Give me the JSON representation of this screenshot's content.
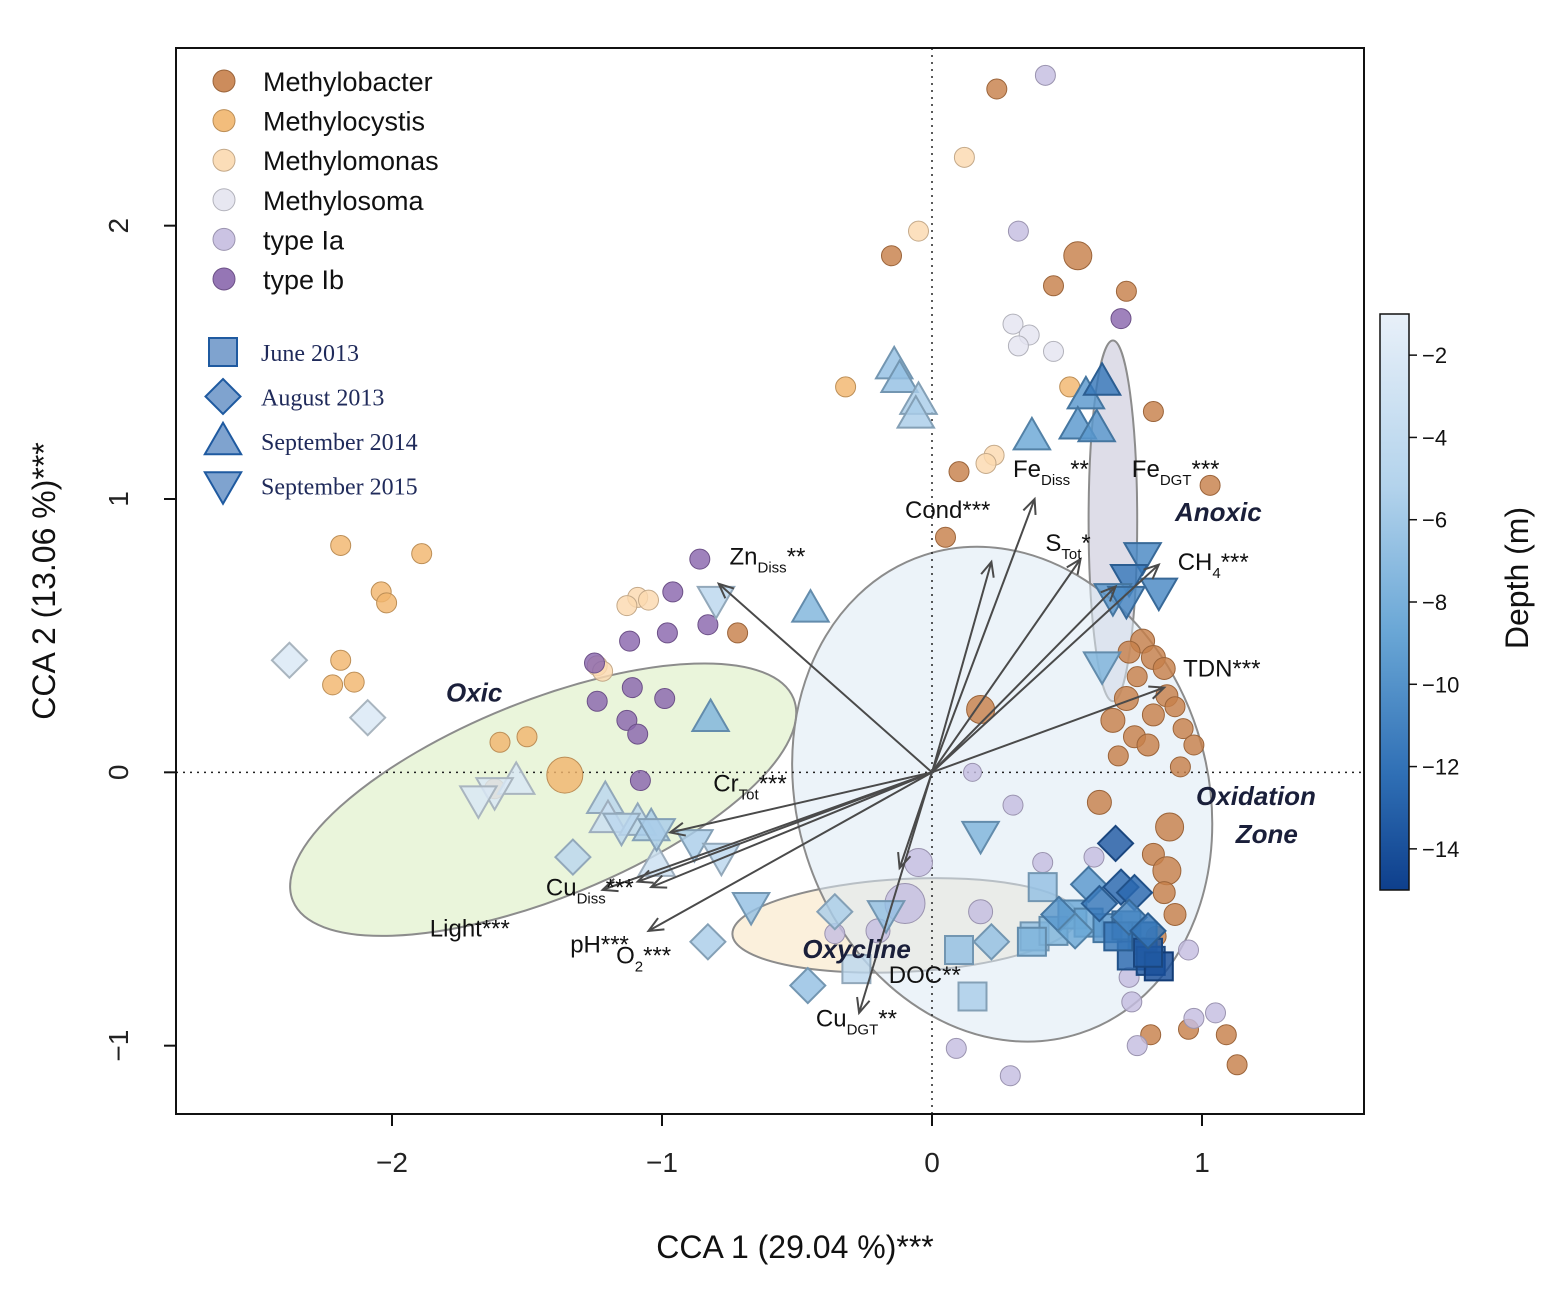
{
  "chart_data": {
    "type": "scatter",
    "subtype": "CCA biplot",
    "xlabel": "CCA 1  (29.04 %)***",
    "ylabel": "CCA 2  (13.06 %)***",
    "xlim": [
      -2.8,
      1.6
    ],
    "ylim": [
      -1.25,
      2.65
    ],
    "xticks": [
      -2,
      -1,
      0,
      1
    ],
    "yticks": [
      -1,
      0,
      1,
      2
    ],
    "xtick_labels": [
      "−2",
      "−1",
      "0",
      "1"
    ],
    "ytick_labels": [
      "−1",
      "0",
      "1",
      "2"
    ],
    "genera": [
      {
        "name": "Methylobacter",
        "color": "#c7804a"
      },
      {
        "name": "Methylocystis",
        "color": "#f1b66e"
      },
      {
        "name": "Methylomonas",
        "color": "#fbd9b0"
      },
      {
        "name": "Methylosoma",
        "color": "#e4e4f0"
      },
      {
        "name": "type Ia",
        "color": "#c5bde0"
      },
      {
        "name": "type Ib",
        "color": "#8a67ad"
      }
    ],
    "campaigns": [
      {
        "name": "June 2013",
        "shape": "square"
      },
      {
        "name": "August 2013",
        "shape": "diamond"
      },
      {
        "name": "September 2014",
        "shape": "triangle-up"
      },
      {
        "name": "September 2015",
        "shape": "triangle-down"
      }
    ],
    "colorbar": {
      "title": "Depth (m)",
      "range": [
        -15,
        -1
      ],
      "ticks": [
        -2,
        -4,
        -6,
        -8,
        -10,
        -12,
        -14
      ],
      "tick_labels": [
        "−2",
        "−4",
        "−6",
        "−8",
        "−10",
        "−12",
        "−14"
      ],
      "colors": [
        "#0e3f8c",
        "#2f6fb5",
        "#6aa7d6",
        "#b3d3ec",
        "#e6eef8"
      ]
    },
    "zones": [
      {
        "name": "Oxic",
        "color": "#d8ecbd",
        "cx": -1.44,
        "cy": -0.1,
        "rx": 1.0,
        "ry": 0.36,
        "rot": -22,
        "lx": -1.8,
        "ly": 0.26
      },
      {
        "name": "Oxycline",
        "color": "#f7e3bf",
        "cx": -0.1,
        "cy": -0.56,
        "rx": 0.64,
        "ry": 0.17,
        "rot": -3,
        "lx": -0.48,
        "ly": -0.68
      },
      {
        "name": "Anoxic",
        "color": "#c3c1d6",
        "cx": 0.67,
        "cy": 0.92,
        "rx": 0.09,
        "ry": 0.66,
        "rot": 0,
        "lx": 0.9,
        "ly": 0.92
      },
      {
        "name": "Oxidation Zone",
        "color": "#dceaf4",
        "cx": 0.26,
        "cy": -0.08,
        "rx": 0.76,
        "ry": 0.92,
        "rot": -18,
        "lx": 1.2,
        "ly": -0.12
      }
    ],
    "vectors": [
      {
        "label": "Fe",
        "sub": "Diss",
        "sig": "**",
        "x": 0.38,
        "y": 1.0,
        "lx": 0.3,
        "ly": 1.08
      },
      {
        "label": "Fe",
        "sub": "DGT",
        "sig": "***",
        "x": 0.84,
        "y": 0.76,
        "lx": 0.74,
        "ly": 1.08
      },
      {
        "label": "Cond",
        "sub": "",
        "sig": "***",
        "x": 0.22,
        "y": 0.77,
        "lx": -0.1,
        "ly": 0.93
      },
      {
        "label": "S",
        "sub": "Tot",
        "sig": "*",
        "x": 0.55,
        "y": 0.78,
        "lx": 0.42,
        "ly": 0.81
      },
      {
        "label": "CH",
        "sub": "4",
        "sig": "***",
        "x": 0.68,
        "y": 0.68,
        "lx": 0.91,
        "ly": 0.74
      },
      {
        "label": "TDN",
        "sub": "",
        "sig": "***",
        "x": 0.86,
        "y": 0.31,
        "lx": 0.93,
        "ly": 0.35
      },
      {
        "label": "Zn",
        "sub": "Diss",
        "sig": "**",
        "x": -0.79,
        "y": 0.69,
        "lx": -0.75,
        "ly": 0.76
      },
      {
        "label": "Cr",
        "sub": "Tot",
        "sig": "***",
        "x": -0.97,
        "y": -0.22,
        "lx": -0.81,
        "ly": -0.07
      },
      {
        "label": "Cu",
        "sub": "Diss",
        "sig": "***",
        "x": -1.22,
        "y": -0.43,
        "lx": -1.43,
        "ly": -0.45
      },
      {
        "label": "Light",
        "sub": "",
        "sig": "***",
        "x": -1.09,
        "y": -0.4,
        "lx": -1.86,
        "ly": -0.6
      },
      {
        "label": "pH",
        "sub": "",
        "sig": "***",
        "x": -1.04,
        "y": -0.42,
        "lx": -1.34,
        "ly": -0.66
      },
      {
        "label": "O",
        "sub": "2",
        "sig": "***",
        "x": -1.05,
        "y": -0.58,
        "lx": -1.17,
        "ly": -0.7
      },
      {
        "label": "DOC",
        "sub": "",
        "sig": "**",
        "x": -0.12,
        "y": -0.35,
        "lx": -0.16,
        "ly": -0.77
      },
      {
        "label": "Cu",
        "sub": "DGT",
        "sig": "**",
        "x": -0.27,
        "y": -0.88,
        "lx": -0.43,
        "ly": -0.93
      }
    ],
    "genus_points": [
      {
        "g": 0,
        "x": 0.24,
        "y": 2.5,
        "s": 10
      },
      {
        "g": 0,
        "x": -0.15,
        "y": 1.89,
        "s": 10
      },
      {
        "g": 0,
        "x": 0.54,
        "y": 1.89,
        "s": 14
      },
      {
        "g": 0,
        "x": 0.45,
        "y": 1.78,
        "s": 10
      },
      {
        "g": 0,
        "x": 0.72,
        "y": 1.76,
        "s": 10
      },
      {
        "g": 0,
        "x": 0.82,
        "y": 1.32,
        "s": 10
      },
      {
        "g": 0,
        "x": 0.1,
        "y": 1.1,
        "s": 10
      },
      {
        "g": 0,
        "x": 1.03,
        "y": 1.05,
        "s": 10
      },
      {
        "g": 0,
        "x": 0.05,
        "y": 0.86,
        "s": 10
      },
      {
        "g": 0,
        "x": -0.72,
        "y": 0.51,
        "s": 10
      },
      {
        "g": 0,
        "x": 0.18,
        "y": 0.23,
        "s": 14
      },
      {
        "g": 0,
        "x": 0.78,
        "y": 0.48,
        "s": 12
      },
      {
        "g": 0,
        "x": 0.82,
        "y": 0.42,
        "s": 12
      },
      {
        "g": 0,
        "x": 0.86,
        "y": 0.38,
        "s": 11
      },
      {
        "g": 0,
        "x": 0.73,
        "y": 0.44,
        "s": 11
      },
      {
        "g": 0,
        "x": 0.76,
        "y": 0.35,
        "s": 10
      },
      {
        "g": 0,
        "x": 0.87,
        "y": 0.28,
        "s": 11
      },
      {
        "g": 0,
        "x": 0.72,
        "y": 0.27,
        "s": 12
      },
      {
        "g": 0,
        "x": 0.82,
        "y": 0.21,
        "s": 11
      },
      {
        "g": 0,
        "x": 0.9,
        "y": 0.24,
        "s": 10
      },
      {
        "g": 0,
        "x": 0.67,
        "y": 0.19,
        "s": 12
      },
      {
        "g": 0,
        "x": 0.75,
        "y": 0.13,
        "s": 11
      },
      {
        "g": 0,
        "x": 0.8,
        "y": 0.1,
        "s": 11
      },
      {
        "g": 0,
        "x": 0.93,
        "y": 0.16,
        "s": 10
      },
      {
        "g": 0,
        "x": 0.97,
        "y": 0.1,
        "s": 10
      },
      {
        "g": 0,
        "x": 0.69,
        "y": 0.06,
        "s": 10
      },
      {
        "g": 0,
        "x": 0.92,
        "y": 0.02,
        "s": 10
      },
      {
        "g": 0,
        "x": 0.62,
        "y": -0.11,
        "s": 12
      },
      {
        "g": 0,
        "x": 0.88,
        "y": -0.2,
        "s": 14
      },
      {
        "g": 0,
        "x": 0.82,
        "y": -0.3,
        "s": 11
      },
      {
        "g": 0,
        "x": 0.87,
        "y": -0.36,
        "s": 14
      },
      {
        "g": 0,
        "x": 0.86,
        "y": -0.44,
        "s": 11
      },
      {
        "g": 0,
        "x": 0.9,
        "y": -0.52,
        "s": 11
      },
      {
        "g": 0,
        "x": 0.83,
        "y": -0.6,
        "s": 10
      },
      {
        "g": 0,
        "x": 0.78,
        "y": -0.64,
        "s": 10
      },
      {
        "g": 0,
        "x": 0.81,
        "y": -0.96,
        "s": 10
      },
      {
        "g": 0,
        "x": 0.95,
        "y": -0.94,
        "s": 10
      },
      {
        "g": 0,
        "x": 1.09,
        "y": -0.96,
        "s": 10
      },
      {
        "g": 0,
        "x": 1.13,
        "y": -1.07,
        "s": 10
      },
      {
        "g": 1,
        "x": -2.19,
        "y": 0.83,
        "s": 10
      },
      {
        "g": 1,
        "x": -1.89,
        "y": 0.8,
        "s": 10
      },
      {
        "g": 1,
        "x": -2.04,
        "y": 0.66,
        "s": 10
      },
      {
        "g": 1,
        "x": -2.02,
        "y": 0.62,
        "s": 10
      },
      {
        "g": 1,
        "x": -2.19,
        "y": 0.41,
        "s": 10
      },
      {
        "g": 1,
        "x": -2.22,
        "y": 0.32,
        "s": 10
      },
      {
        "g": 1,
        "x": -2.14,
        "y": 0.33,
        "s": 10
      },
      {
        "g": 1,
        "x": -1.6,
        "y": 0.11,
        "s": 10
      },
      {
        "g": 1,
        "x": -1.5,
        "y": 0.13,
        "s": 10
      },
      {
        "g": 1,
        "x": -1.36,
        "y": -0.01,
        "s": 18
      },
      {
        "g": 1,
        "x": -1.62,
        "y": -0.06,
        "s": 10
      },
      {
        "g": 1,
        "x": -0.32,
        "y": 1.41,
        "s": 10
      },
      {
        "g": 1,
        "x": 0.51,
        "y": 1.41,
        "s": 10
      },
      {
        "g": 2,
        "x": 0.12,
        "y": 2.25,
        "s": 10
      },
      {
        "g": 2,
        "x": -0.05,
        "y": 1.98,
        "s": 10
      },
      {
        "g": 2,
        "x": -1.09,
        "y": 0.64,
        "s": 10
      },
      {
        "g": 2,
        "x": -1.05,
        "y": 0.63,
        "s": 10
      },
      {
        "g": 2,
        "x": -1.13,
        "y": 0.61,
        "s": 10
      },
      {
        "g": 2,
        "x": -1.24,
        "y": 0.39,
        "s": 10
      },
      {
        "g": 2,
        "x": -1.22,
        "y": 0.37,
        "s": 10
      },
      {
        "g": 2,
        "x": 0.23,
        "y": 1.16,
        "s": 10
      },
      {
        "g": 2,
        "x": 0.2,
        "y": 1.13,
        "s": 10
      },
      {
        "g": 3,
        "x": 0.3,
        "y": 1.64,
        "s": 10
      },
      {
        "g": 3,
        "x": 0.36,
        "y": 1.6,
        "s": 10
      },
      {
        "g": 3,
        "x": 0.32,
        "y": 1.56,
        "s": 10
      },
      {
        "g": 3,
        "x": 0.45,
        "y": 1.54,
        "s": 10
      },
      {
        "g": 4,
        "x": 0.42,
        "y": 2.55,
        "s": 10
      },
      {
        "g": 4,
        "x": 0.32,
        "y": 1.98,
        "s": 10
      },
      {
        "g": 4,
        "x": 0.15,
        "y": 0.0,
        "s": 9
      },
      {
        "g": 4,
        "x": 0.3,
        "y": -0.12,
        "s": 10
      },
      {
        "g": 4,
        "x": -0.1,
        "y": -0.48,
        "s": 20
      },
      {
        "g": 4,
        "x": -0.05,
        "y": -0.33,
        "s": 14
      },
      {
        "g": 4,
        "x": -0.2,
        "y": -0.58,
        "s": 12
      },
      {
        "g": 4,
        "x": 0.18,
        "y": -0.51,
        "s": 12
      },
      {
        "g": 4,
        "x": -0.36,
        "y": -0.59,
        "s": 10
      },
      {
        "g": 4,
        "x": 0.41,
        "y": -0.33,
        "s": 10
      },
      {
        "g": 4,
        "x": 0.6,
        "y": -0.31,
        "s": 10
      },
      {
        "g": 4,
        "x": 0.95,
        "y": -0.65,
        "s": 10
      },
      {
        "g": 4,
        "x": 0.97,
        "y": -0.9,
        "s": 10
      },
      {
        "g": 4,
        "x": 0.74,
        "y": -0.84,
        "s": 10
      },
      {
        "g": 4,
        "x": 0.76,
        "y": -1.0,
        "s": 10
      },
      {
        "g": 4,
        "x": 0.09,
        "y": -1.01,
        "s": 10
      },
      {
        "g": 4,
        "x": 0.29,
        "y": -1.11,
        "s": 10
      },
      {
        "g": 4,
        "x": 1.05,
        "y": -0.88,
        "s": 10
      },
      {
        "g": 4,
        "x": 0.73,
        "y": -0.75,
        "s": 10
      },
      {
        "g": 5,
        "x": 0.7,
        "y": 1.66,
        "s": 10
      },
      {
        "g": 5,
        "x": -0.86,
        "y": 0.78,
        "s": 10
      },
      {
        "g": 5,
        "x": -0.96,
        "y": 0.66,
        "s": 10
      },
      {
        "g": 5,
        "x": -0.98,
        "y": 0.51,
        "s": 10
      },
      {
        "g": 5,
        "x": -0.83,
        "y": 0.54,
        "s": 10
      },
      {
        "g": 5,
        "x": -1.12,
        "y": 0.48,
        "s": 10
      },
      {
        "g": 5,
        "x": -1.25,
        "y": 0.4,
        "s": 10
      },
      {
        "g": 5,
        "x": -1.11,
        "y": 0.31,
        "s": 10
      },
      {
        "g": 5,
        "x": -1.24,
        "y": 0.26,
        "s": 10
      },
      {
        "g": 5,
        "x": -0.99,
        "y": 0.27,
        "s": 10
      },
      {
        "g": 5,
        "x": -1.13,
        "y": 0.19,
        "s": 10
      },
      {
        "g": 5,
        "x": -1.09,
        "y": 0.14,
        "s": 10
      },
      {
        "g": 5,
        "x": -1.08,
        "y": -0.03,
        "s": 10
      }
    ],
    "sample_points": [
      {
        "c": 2,
        "x": -0.14,
        "y": 1.49,
        "d": -6
      },
      {
        "c": 2,
        "x": -0.12,
        "y": 1.44,
        "d": -6
      },
      {
        "c": 2,
        "x": -0.05,
        "y": 1.36,
        "d": -5
      },
      {
        "c": 2,
        "x": -0.06,
        "y": 1.31,
        "d": -5
      },
      {
        "c": 2,
        "x": 0.37,
        "y": 1.23,
        "d": -8
      },
      {
        "c": 2,
        "x": 0.57,
        "y": 1.38,
        "d": -9
      },
      {
        "c": 2,
        "x": 0.63,
        "y": 1.43,
        "d": -11
      },
      {
        "c": 2,
        "x": 0.54,
        "y": 1.27,
        "d": -9
      },
      {
        "c": 2,
        "x": 0.61,
        "y": 1.26,
        "d": -9
      },
      {
        "c": 2,
        "x": -0.45,
        "y": 0.6,
        "d": -7
      },
      {
        "c": 2,
        "x": -0.82,
        "y": 0.2,
        "d": -7
      },
      {
        "c": 2,
        "x": -1.21,
        "y": -0.1,
        "d": -4
      },
      {
        "c": 2,
        "x": -1.2,
        "y": -0.17,
        "d": -3
      },
      {
        "c": 2,
        "x": -1.09,
        "y": -0.18,
        "d": -4
      },
      {
        "c": 2,
        "x": -1.04,
        "y": -0.2,
        "d": -5
      },
      {
        "c": 2,
        "x": -1.54,
        "y": -0.03,
        "d": -2
      },
      {
        "c": 2,
        "x": -1.02,
        "y": -0.33,
        "d": -3
      },
      {
        "c": 3,
        "x": -0.8,
        "y": 0.63,
        "d": -4
      },
      {
        "c": 3,
        "x": 0.78,
        "y": 0.79,
        "d": -10
      },
      {
        "c": 3,
        "x": 0.73,
        "y": 0.71,
        "d": -11
      },
      {
        "c": 3,
        "x": 0.84,
        "y": 0.66,
        "d": -10
      },
      {
        "c": 3,
        "x": 0.67,
        "y": 0.64,
        "d": -9
      },
      {
        "c": 3,
        "x": 0.72,
        "y": 0.63,
        "d": -10
      },
      {
        "c": 3,
        "x": 0.63,
        "y": 0.39,
        "d": -7
      },
      {
        "c": 3,
        "x": 0.18,
        "y": -0.23,
        "d": -7
      },
      {
        "c": 3,
        "x": -0.67,
        "y": -0.49,
        "d": -6
      },
      {
        "c": 3,
        "x": -0.88,
        "y": -0.26,
        "d": -5
      },
      {
        "c": 3,
        "x": -0.78,
        "y": -0.31,
        "d": -4
      },
      {
        "c": 3,
        "x": -1.15,
        "y": -0.2,
        "d": -4
      },
      {
        "c": 3,
        "x": -1.02,
        "y": -0.22,
        "d": -5
      },
      {
        "c": 3,
        "x": -1.62,
        "y": -0.07,
        "d": -2
      },
      {
        "c": 3,
        "x": -1.68,
        "y": -0.1,
        "d": -2
      },
      {
        "c": 3,
        "x": -0.17,
        "y": -0.52,
        "d": -6
      },
      {
        "c": 0,
        "x": 0.41,
        "y": -0.42,
        "d": -6
      },
      {
        "c": 0,
        "x": 0.1,
        "y": -0.65,
        "d": -6
      },
      {
        "c": 0,
        "x": 0.15,
        "y": -0.82,
        "d": -5
      },
      {
        "c": 0,
        "x": -0.28,
        "y": -0.72,
        "d": -4
      },
      {
        "c": 0,
        "x": 0.38,
        "y": -0.6,
        "d": -6
      },
      {
        "c": 0,
        "x": 0.45,
        "y": -0.58,
        "d": -7
      },
      {
        "c": 0,
        "x": 0.52,
        "y": -0.52,
        "d": -8
      },
      {
        "c": 0,
        "x": 0.58,
        "y": -0.55,
        "d": -8
      },
      {
        "c": 0,
        "x": 0.65,
        "y": -0.57,
        "d": -9
      },
      {
        "c": 0,
        "x": 0.72,
        "y": -0.56,
        "d": -10
      },
      {
        "c": 0,
        "x": 0.78,
        "y": -0.6,
        "d": -11
      },
      {
        "c": 0,
        "x": 0.74,
        "y": -0.67,
        "d": -12
      },
      {
        "c": 0,
        "x": 0.81,
        "y": -0.69,
        "d": -13
      },
      {
        "c": 0,
        "x": 0.84,
        "y": -0.71,
        "d": -14
      },
      {
        "c": 0,
        "x": 0.8,
        "y": -0.66,
        "d": -13
      },
      {
        "c": 0,
        "x": 0.69,
        "y": -0.6,
        "d": -11
      },
      {
        "c": 0,
        "x": 0.37,
        "y": -0.62,
        "d": -7
      },
      {
        "c": 1,
        "x": -2.38,
        "y": 0.41,
        "d": -2
      },
      {
        "c": 1,
        "x": -2.09,
        "y": 0.2,
        "d": -2
      },
      {
        "c": 1,
        "x": -1.33,
        "y": -0.31,
        "d": -4
      },
      {
        "c": 1,
        "x": -0.83,
        "y": -0.62,
        "d": -5
      },
      {
        "c": 1,
        "x": -0.46,
        "y": -0.78,
        "d": -6
      },
      {
        "c": 1,
        "x": -0.36,
        "y": -0.51,
        "d": -5
      },
      {
        "c": 1,
        "x": 0.22,
        "y": -0.62,
        "d": -6
      },
      {
        "c": 1,
        "x": 0.47,
        "y": -0.52,
        "d": -9
      },
      {
        "c": 1,
        "x": 0.58,
        "y": -0.41,
        "d": -9
      },
      {
        "c": 1,
        "x": 0.68,
        "y": -0.26,
        "d": -13
      },
      {
        "c": 1,
        "x": 0.7,
        "y": -0.42,
        "d": -12
      },
      {
        "c": 1,
        "x": 0.75,
        "y": -0.44,
        "d": -12
      },
      {
        "c": 1,
        "x": 0.62,
        "y": -0.48,
        "d": -11
      },
      {
        "c": 1,
        "x": 0.73,
        "y": -0.53,
        "d": -10
      },
      {
        "c": 1,
        "x": 0.8,
        "y": -0.58,
        "d": -11
      },
      {
        "c": 1,
        "x": 0.53,
        "y": -0.58,
        "d": -8
      }
    ]
  }
}
